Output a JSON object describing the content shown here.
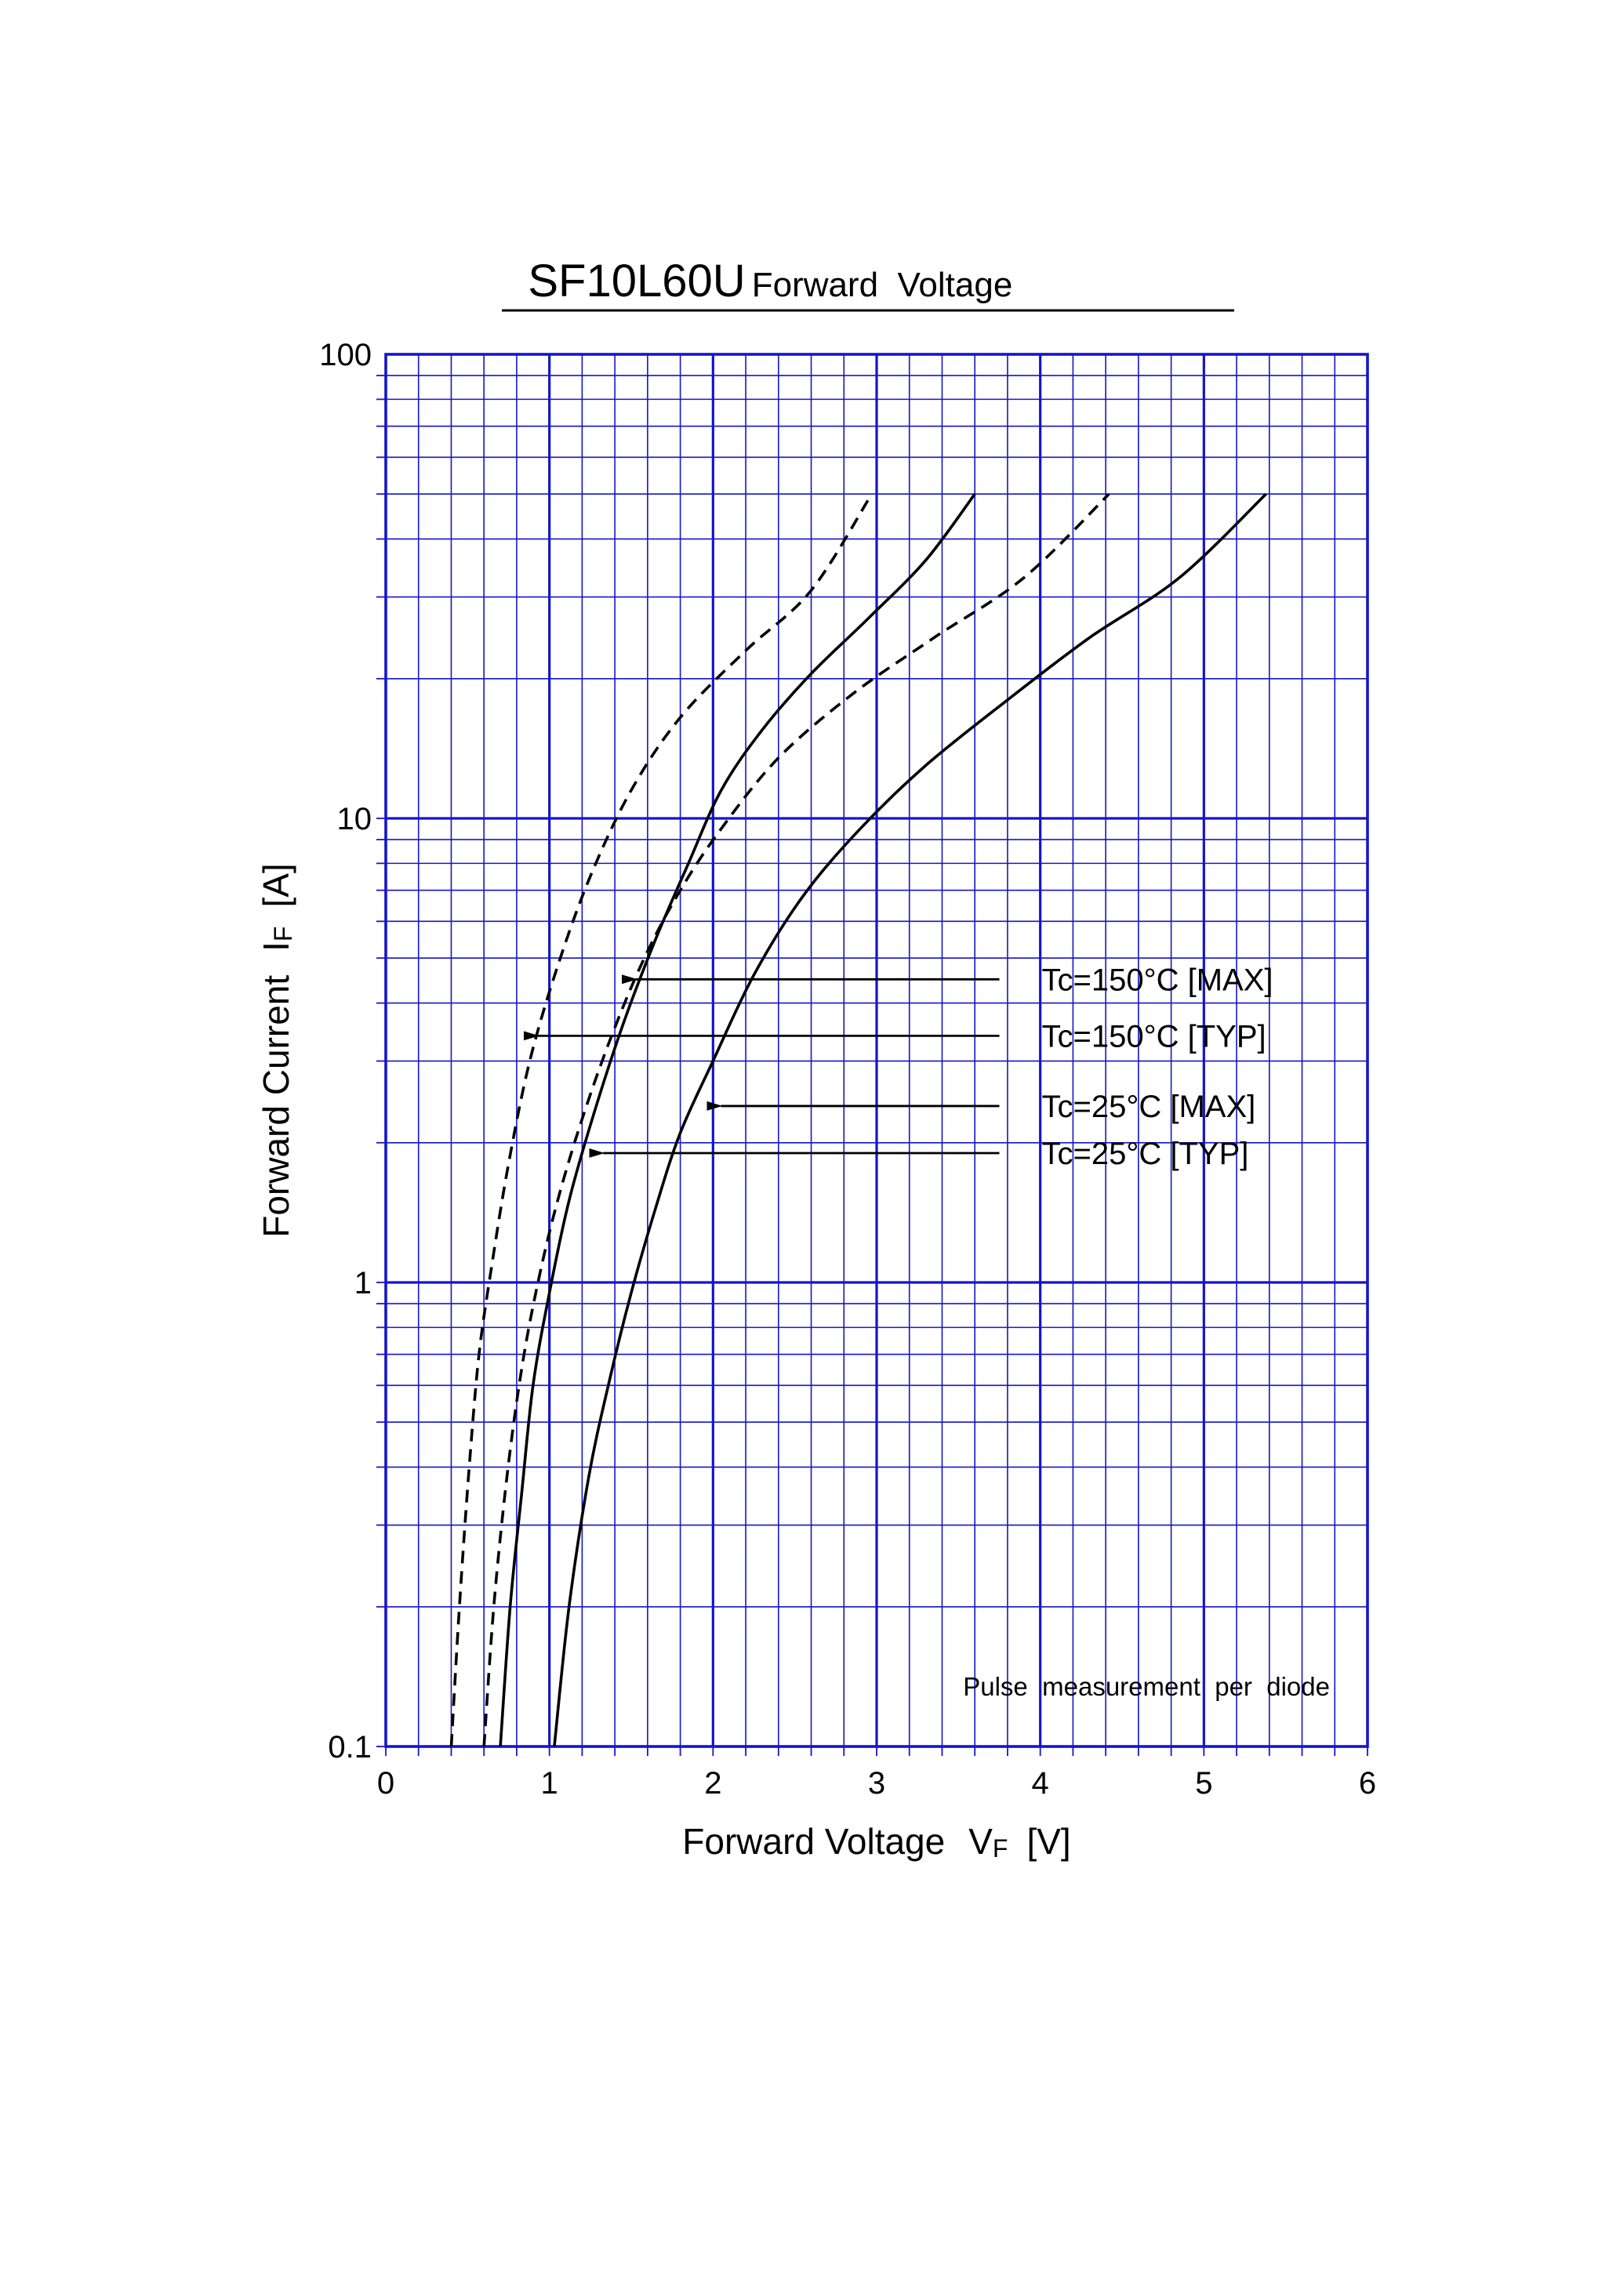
{
  "chart_data": {
    "type": "line",
    "title": "SF10L60U",
    "subtitle": "Forward  Voltage",
    "xlabel": "Forward Voltage",
    "xlabel_symbol": "V",
    "xlabel_subscript": "F",
    "xlabel_unit": "[V]",
    "ylabel": "Forward Current",
    "ylabel_symbol": "I",
    "ylabel_subscript": "F",
    "ylabel_unit": "[A]",
    "xlim": [
      0,
      6
    ],
    "ylim": [
      0.1,
      100
    ],
    "yscale": "log",
    "grid": true,
    "grid_color": "#1515c8",
    "line_color": "#000000",
    "x_ticks": [
      "0",
      "1",
      "2",
      "3",
      "4",
      "5",
      "6"
    ],
    "y_ticks": [
      "0.1",
      "1",
      "10",
      "100"
    ],
    "note": "Pulse  measurement  per  diode",
    "series": [
      {
        "name": "Tc=150°C [MAX]",
        "dash": false,
        "points": [
          [
            0.7,
            0.1
          ],
          [
            0.76,
            0.2
          ],
          [
            0.83,
            0.35
          ],
          [
            0.9,
            0.6
          ],
          [
            1.0,
            0.95
          ],
          [
            1.12,
            1.5
          ],
          [
            1.27,
            2.3
          ],
          [
            1.45,
            3.6
          ],
          [
            1.65,
            5.5
          ],
          [
            1.85,
            8.0
          ],
          [
            2.05,
            11.5
          ],
          [
            2.3,
            15.5
          ],
          [
            2.6,
            20.5
          ],
          [
            2.95,
            27
          ],
          [
            3.3,
            36
          ],
          [
            3.6,
            50
          ]
        ]
      },
      {
        "name": "Tc=150°C [TYP]",
        "dash": true,
        "points": [
          [
            0.4,
            0.1
          ],
          [
            0.45,
            0.2
          ],
          [
            0.51,
            0.4
          ],
          [
            0.57,
            0.7
          ],
          [
            0.65,
            1.1
          ],
          [
            0.75,
            1.8
          ],
          [
            0.88,
            3.0
          ],
          [
            1.05,
            4.8
          ],
          [
            1.25,
            7.5
          ],
          [
            1.5,
            11.5
          ],
          [
            1.8,
            16.5
          ],
          [
            2.2,
            23
          ],
          [
            2.6,
            31
          ],
          [
            2.97,
            50
          ]
        ]
      },
      {
        "name": "Tc=25°C [MAX]",
        "dash": false,
        "points": [
          [
            1.03,
            0.1
          ],
          [
            1.12,
            0.2
          ],
          [
            1.24,
            0.38
          ],
          [
            1.36,
            0.6
          ],
          [
            1.5,
            0.95
          ],
          [
            1.65,
            1.45
          ],
          [
            1.8,
            2.1
          ],
          [
            2.0,
            3.0
          ],
          [
            2.25,
            4.6
          ],
          [
            2.55,
            6.8
          ],
          [
            2.9,
            9.5
          ],
          [
            3.3,
            13
          ],
          [
            3.8,
            18
          ],
          [
            4.3,
            24.5
          ],
          [
            4.85,
            33
          ],
          [
            5.38,
            50
          ]
        ]
      },
      {
        "name": "Tc=25°C [TYP]",
        "dash": true,
        "points": [
          [
            0.6,
            0.1
          ],
          [
            0.66,
            0.2
          ],
          [
            0.74,
            0.38
          ],
          [
            0.83,
            0.65
          ],
          [
            0.93,
            1.0
          ],
          [
            1.05,
            1.5
          ],
          [
            1.2,
            2.25
          ],
          [
            1.38,
            3.4
          ],
          [
            1.58,
            5.0
          ],
          [
            1.8,
            7.0
          ],
          [
            2.05,
            9.5
          ],
          [
            2.4,
            13.5
          ],
          [
            2.85,
            18.5
          ],
          [
            3.35,
            24.5
          ],
          [
            3.9,
            33
          ],
          [
            4.42,
            50
          ]
        ]
      }
    ],
    "annotations": [
      {
        "text": "Tc=150°C [MAX]",
        "series": 0,
        "arrow_from_x": 3.75,
        "arrow_to": [
          1.5,
          4.5
        ]
      },
      {
        "text": "Tc=150°C [TYP]",
        "series": 1,
        "arrow_from_x": 3.75,
        "arrow_to": [
          0.9,
          3.4
        ]
      },
      {
        "text": "Tc=25°C [MAX]",
        "series": 2,
        "arrow_from_x": 3.75,
        "arrow_to": [
          2.02,
          2.4
        ]
      },
      {
        "text": "Tc=25°C [TYP]",
        "series": 3,
        "arrow_from_x": 3.75,
        "arrow_to": [
          1.3,
          1.9
        ]
      }
    ]
  }
}
